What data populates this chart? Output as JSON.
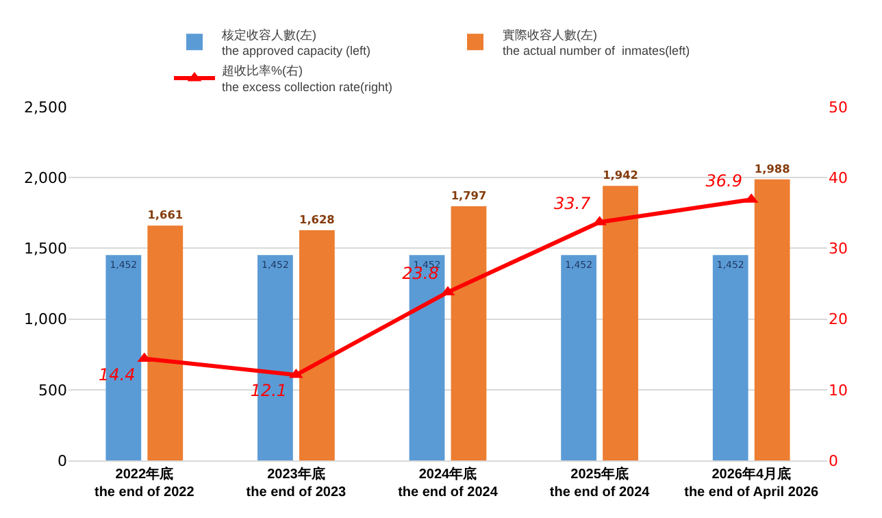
{
  "chart_data": {
    "type": "bar",
    "categories": [
      "2022年底\nthe end of 2022",
      "2023年底\nthe end of 2023",
      "2024年底\nthe end of 2024",
      "2025年底\nthe end of 2024",
      "2026年4月底\nthe end of April 2026"
    ],
    "series": [
      {
        "name": "核定收容人數(左)\nthe approved capacity (left)",
        "color": "#5b9bd5",
        "values": [
          1452,
          1452,
          1452,
          1452,
          1452
        ],
        "value_labels": [
          "1,452",
          "1,452",
          "1,452",
          "1,452",
          "1,452"
        ]
      },
      {
        "name": "實際收容人數(左)\nthe actual number of  inmates(left)",
        "color": "#ed7d31",
        "values": [
          1661,
          1628,
          1797,
          1942,
          1988
        ],
        "value_labels": [
          "1,661",
          "1,628",
          "1,797",
          "1,942",
          "1,988"
        ]
      },
      {
        "name": "超收比率%(右)\nthe excess collection rate(right)",
        "type": "line",
        "axis": "y2",
        "color": "#ff0000",
        "marker": "triangle",
        "values": [
          14.4,
          12.1,
          23.8,
          33.7,
          36.9
        ],
        "value_labels": [
          "14.4",
          "12.1",
          "23.8",
          "33.7",
          "36.9"
        ]
      }
    ],
    "ylim": [
      0,
      2500
    ],
    "yticks": [
      0,
      500,
      {
        "value": 1000,
        "label": "1,000"
      },
      {
        "value": 1500,
        "label": "1,500"
      },
      {
        "value": 2000,
        "label": "2,000"
      },
      {
        "value": 2500,
        "label": "2,500"
      }
    ],
    "y2lim": [
      0,
      50
    ],
    "y2ticks": [
      0,
      10,
      20,
      30,
      40,
      50
    ],
    "grid": "y",
    "legend": "top"
  }
}
